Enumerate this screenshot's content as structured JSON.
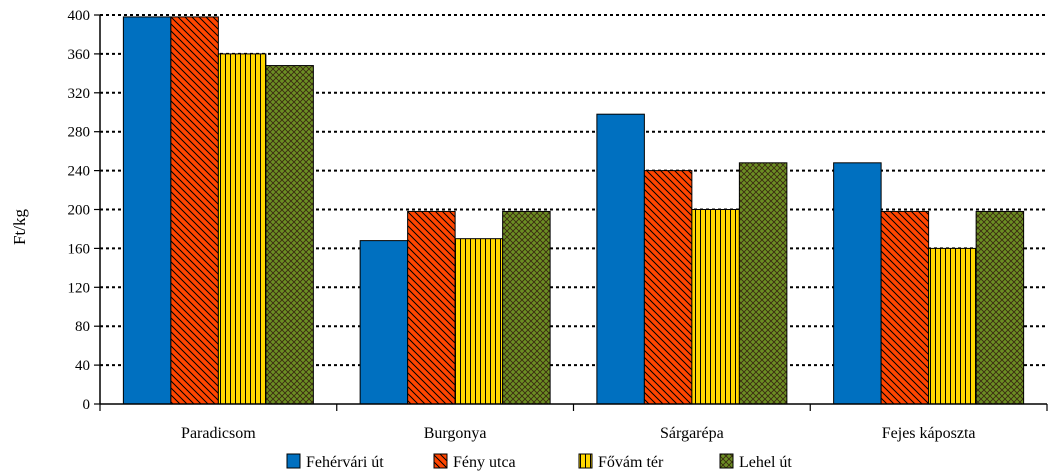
{
  "chart_data": {
    "type": "bar",
    "categories": [
      "Paradicsom",
      "Burgonya",
      "Sárgarépa",
      "Fejes káposzta"
    ],
    "series": [
      {
        "name": "Fehérvári út",
        "values": [
          398,
          168,
          298,
          248
        ],
        "color": "#0070c0",
        "pattern": "solid"
      },
      {
        "name": "Fény utca",
        "values": [
          398,
          198,
          240,
          198
        ],
        "color": "#ff4500",
        "pattern": "diagonal-hatch"
      },
      {
        "name": "Fővám tér",
        "values": [
          360,
          170,
          200,
          160
        ],
        "color": "#ffd700",
        "pattern": "vertical-lines"
      },
      {
        "name": "Lehel út",
        "values": [
          348,
          198,
          248,
          198
        ],
        "color": "#6b8e23",
        "pattern": "crosshatch"
      }
    ],
    "ylabel": "Ft/kg",
    "ylim": [
      0,
      400
    ],
    "yticks": [
      0,
      40,
      80,
      120,
      160,
      200,
      240,
      280,
      320,
      360,
      400
    ],
    "grid": "dotted-horizontal",
    "legend_position": "bottom"
  }
}
